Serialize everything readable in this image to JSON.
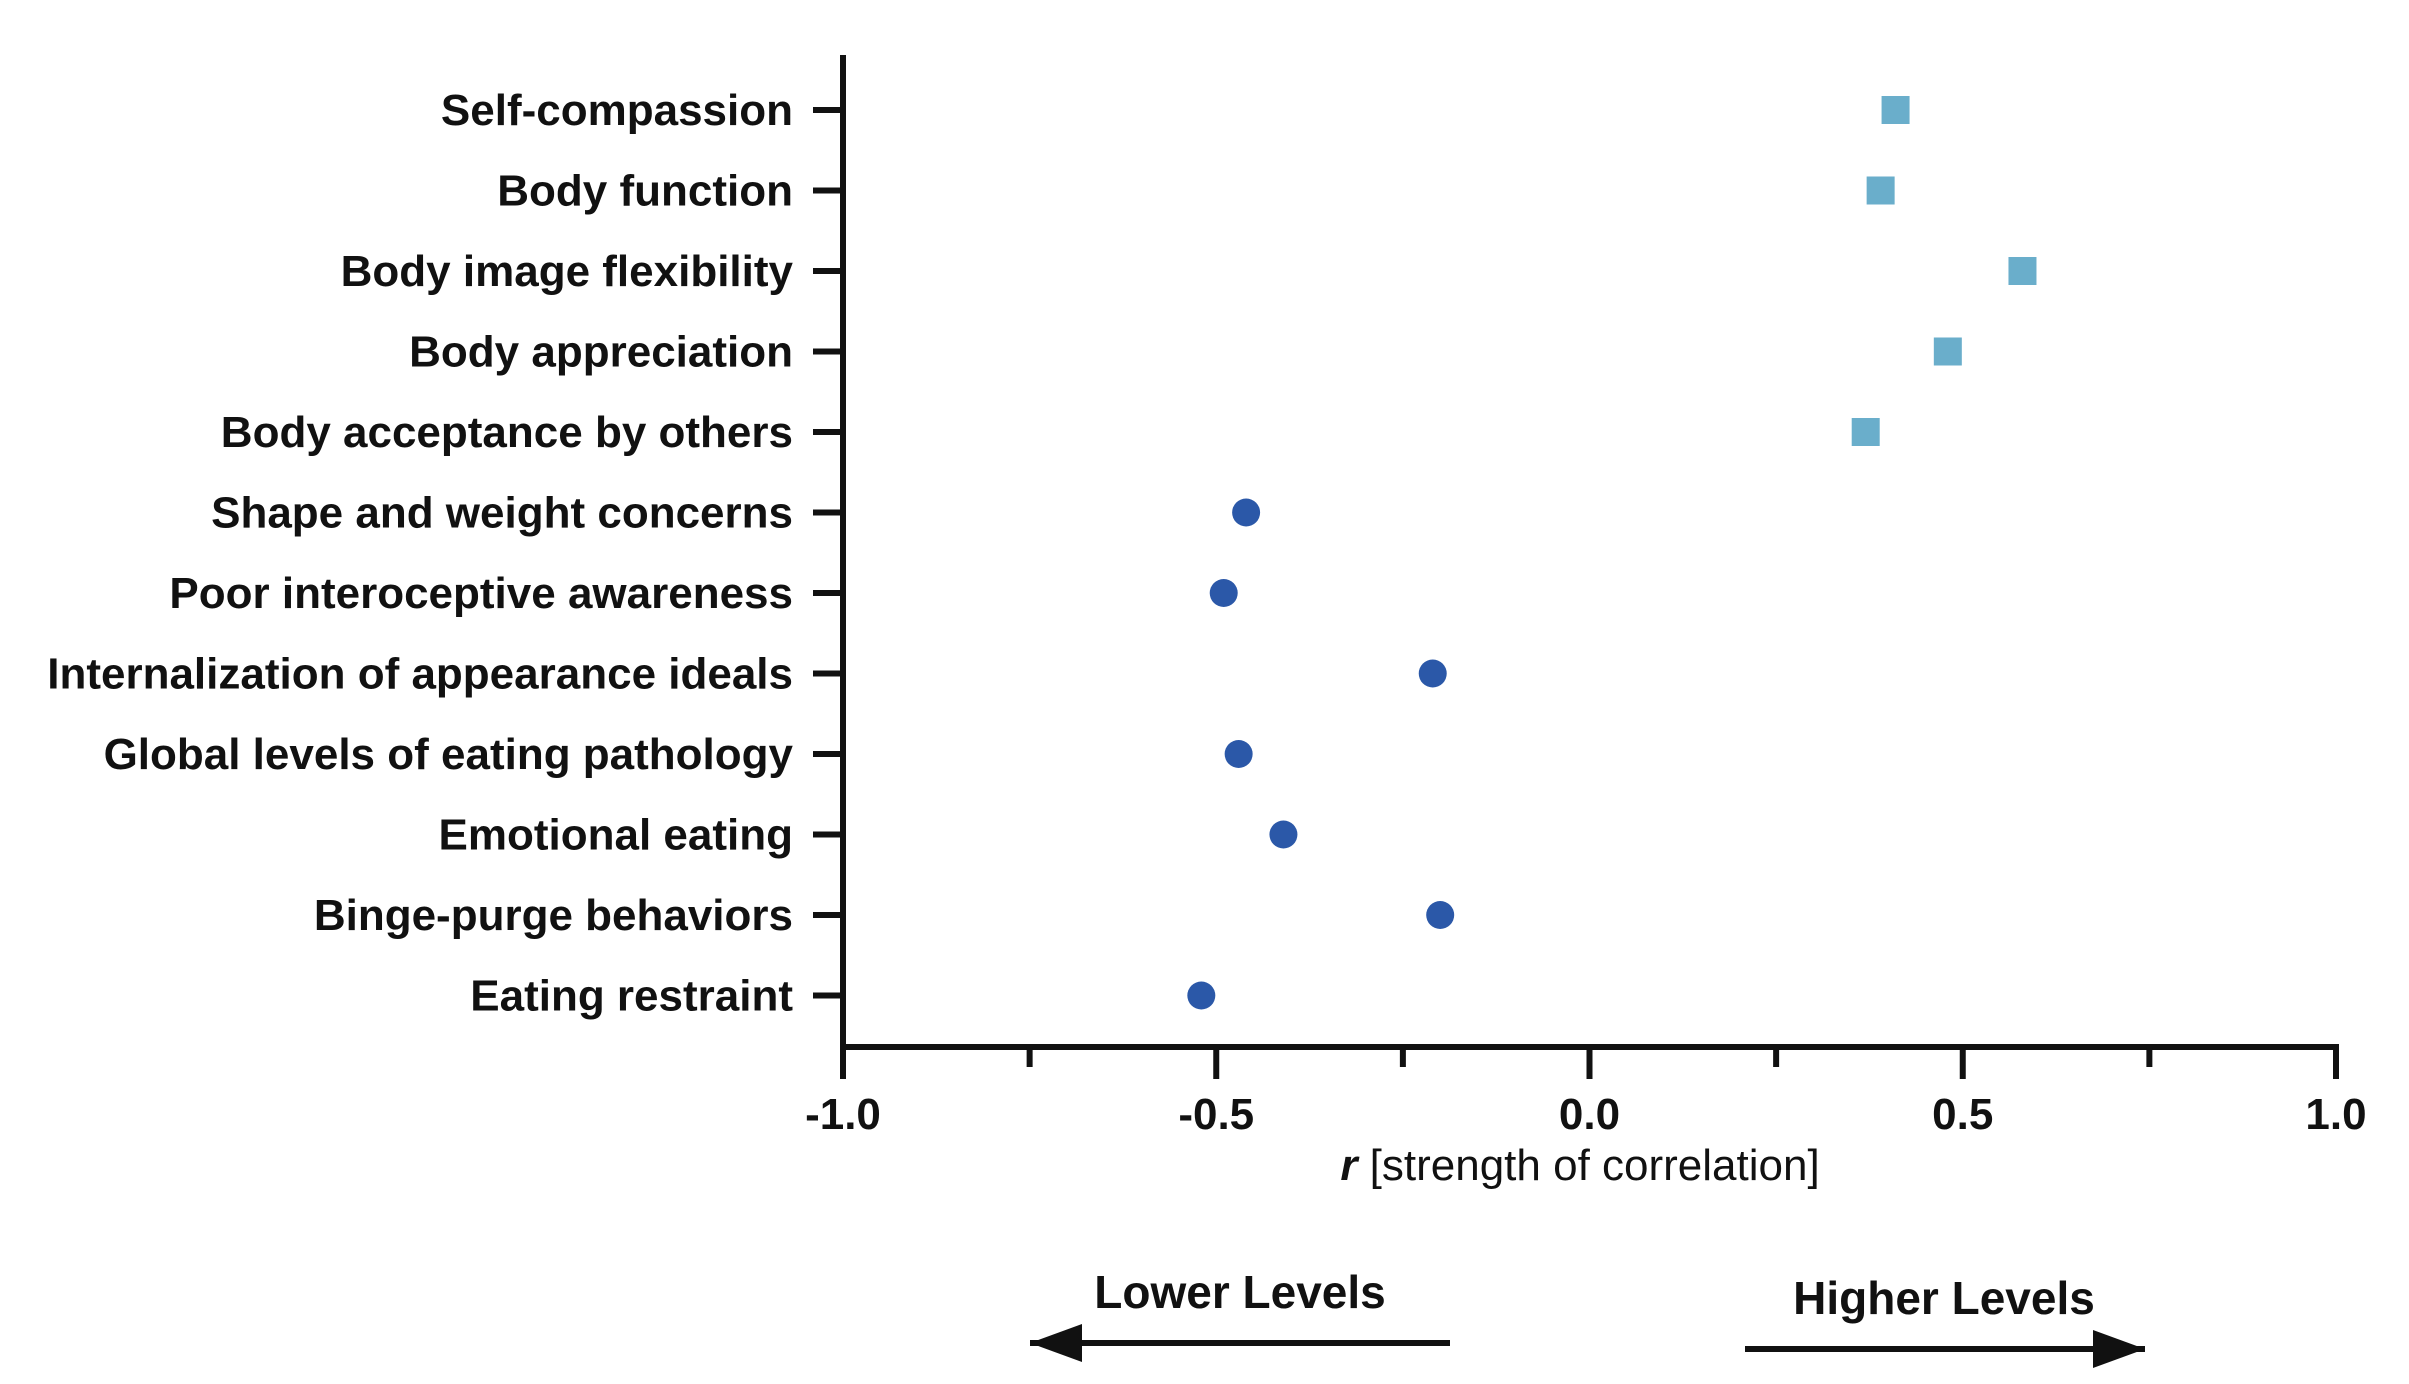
{
  "chart_data": {
    "type": "scatter",
    "title": "",
    "xlabel_prefix": "r",
    "xlabel_suffix": " [strength of correlation]",
    "xlim": [
      -1.0,
      1.0
    ],
    "x_ticks": [
      -1.0,
      -0.5,
      0.0,
      0.5,
      1.0
    ],
    "x_tick_labels": [
      "-1.0",
      "-0.5",
      "0.0",
      "0.5",
      "1.0"
    ],
    "x_minor_ticks": [
      -0.75,
      -0.25,
      0.25,
      0.75
    ],
    "grid": false,
    "categories": [
      "Self-compassion",
      "Body function",
      "Body image flexibility",
      "Body appreciation",
      "Body acceptance by others",
      "Shape and weight concerns",
      "Poor interoceptive awareness",
      "Internalization of appearance ideals",
      "Global levels of eating pathology",
      "Emotional eating",
      "Binge-purge behaviors",
      "Eating restraint"
    ],
    "series": [
      {
        "marker": "square",
        "color": "#6aaecb",
        "points": [
          {
            "category": "Self-compassion",
            "x": 0.41
          },
          {
            "category": "Body function",
            "x": 0.39
          },
          {
            "category": "Body image flexibility",
            "x": 0.58
          },
          {
            "category": "Body appreciation",
            "x": 0.48
          },
          {
            "category": "Body acceptance by others",
            "x": 0.37
          }
        ]
      },
      {
        "marker": "circle",
        "color": "#2b58a8",
        "points": [
          {
            "category": "Shape and weight concerns",
            "x": -0.46
          },
          {
            "category": "Poor interoceptive awareness",
            "x": -0.49
          },
          {
            "category": "Internalization of appearance ideals",
            "x": -0.21
          },
          {
            "category": "Global levels of eating pathology",
            "x": -0.47
          },
          {
            "category": "Emotional eating",
            "x": -0.41
          },
          {
            "category": "Binge-purge behaviors",
            "x": -0.2
          },
          {
            "category": "Eating restraint",
            "x": -0.52
          }
        ]
      }
    ],
    "annotations": {
      "left_arrow_label": "Lower Levels",
      "right_arrow_label": "Higher Levels"
    }
  }
}
